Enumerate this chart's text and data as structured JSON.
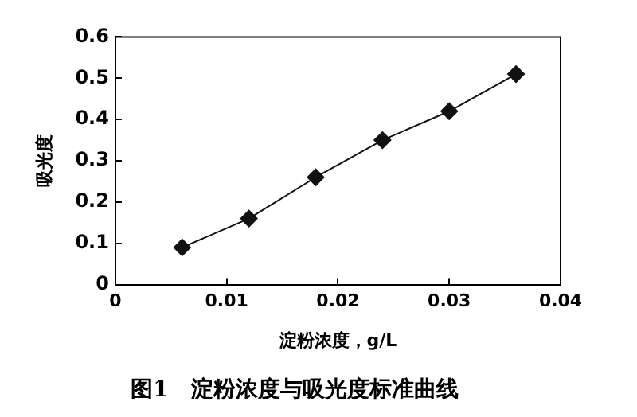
{
  "chart_data": {
    "type": "line",
    "title": "图1　淀粉浓度与吸光度标准曲线",
    "xlabel": "淀粉浓度，g/L",
    "ylabel": "吸光度",
    "x": [
      0.006,
      0.012,
      0.018,
      0.024,
      0.03,
      0.036
    ],
    "values": [
      0.09,
      0.16,
      0.26,
      0.35,
      0.42,
      0.51
    ],
    "color": "#111111",
    "marker": "diamond",
    "line_style": "solid",
    "grid": false,
    "legend": false,
    "xlim": [
      0,
      0.04
    ],
    "xticks": [
      0,
      0.01,
      0.02,
      0.03,
      0.04
    ],
    "ylim": [
      0,
      0.6
    ],
    "yticks": [
      0,
      0.1,
      0.2,
      0.3,
      0.4,
      0.5,
      0.6
    ]
  }
}
